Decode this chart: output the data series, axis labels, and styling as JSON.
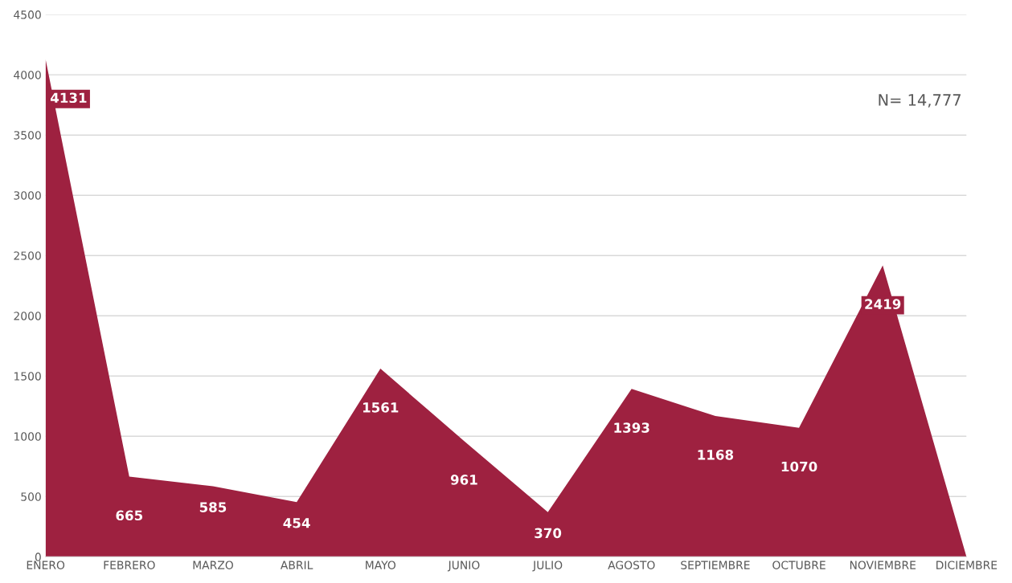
{
  "chart_data": {
    "type": "area",
    "categories": [
      "ENERO",
      "FEBRERO",
      "MARZO",
      "ABRIL",
      "MAYO",
      "JUNIO",
      "JULIO",
      "AGOSTO",
      "SEPTIEMBRE",
      "OCTUBRE",
      "NOVIEMBRE",
      "DICIEMBRE"
    ],
    "series": [
      {
        "color": "#9e2140",
        "values": [
          4131,
          665,
          585,
          454,
          1561,
          961,
          370,
          1393,
          1168,
          1070,
          2419,
          0
        ],
        "value_labels": [
          "4131",
          "665",
          "585",
          "454",
          "1561",
          "961",
          "370",
          "1393",
          "1168",
          "1070",
          "2419",
          null
        ]
      }
    ],
    "ylim": [
      0,
      4500
    ],
    "yticks": [
      0,
      500,
      1000,
      1500,
      2000,
      2500,
      3000,
      3500,
      4000,
      4500
    ],
    "grid": "y",
    "annotations": [
      "N= 14,777"
    ]
  }
}
